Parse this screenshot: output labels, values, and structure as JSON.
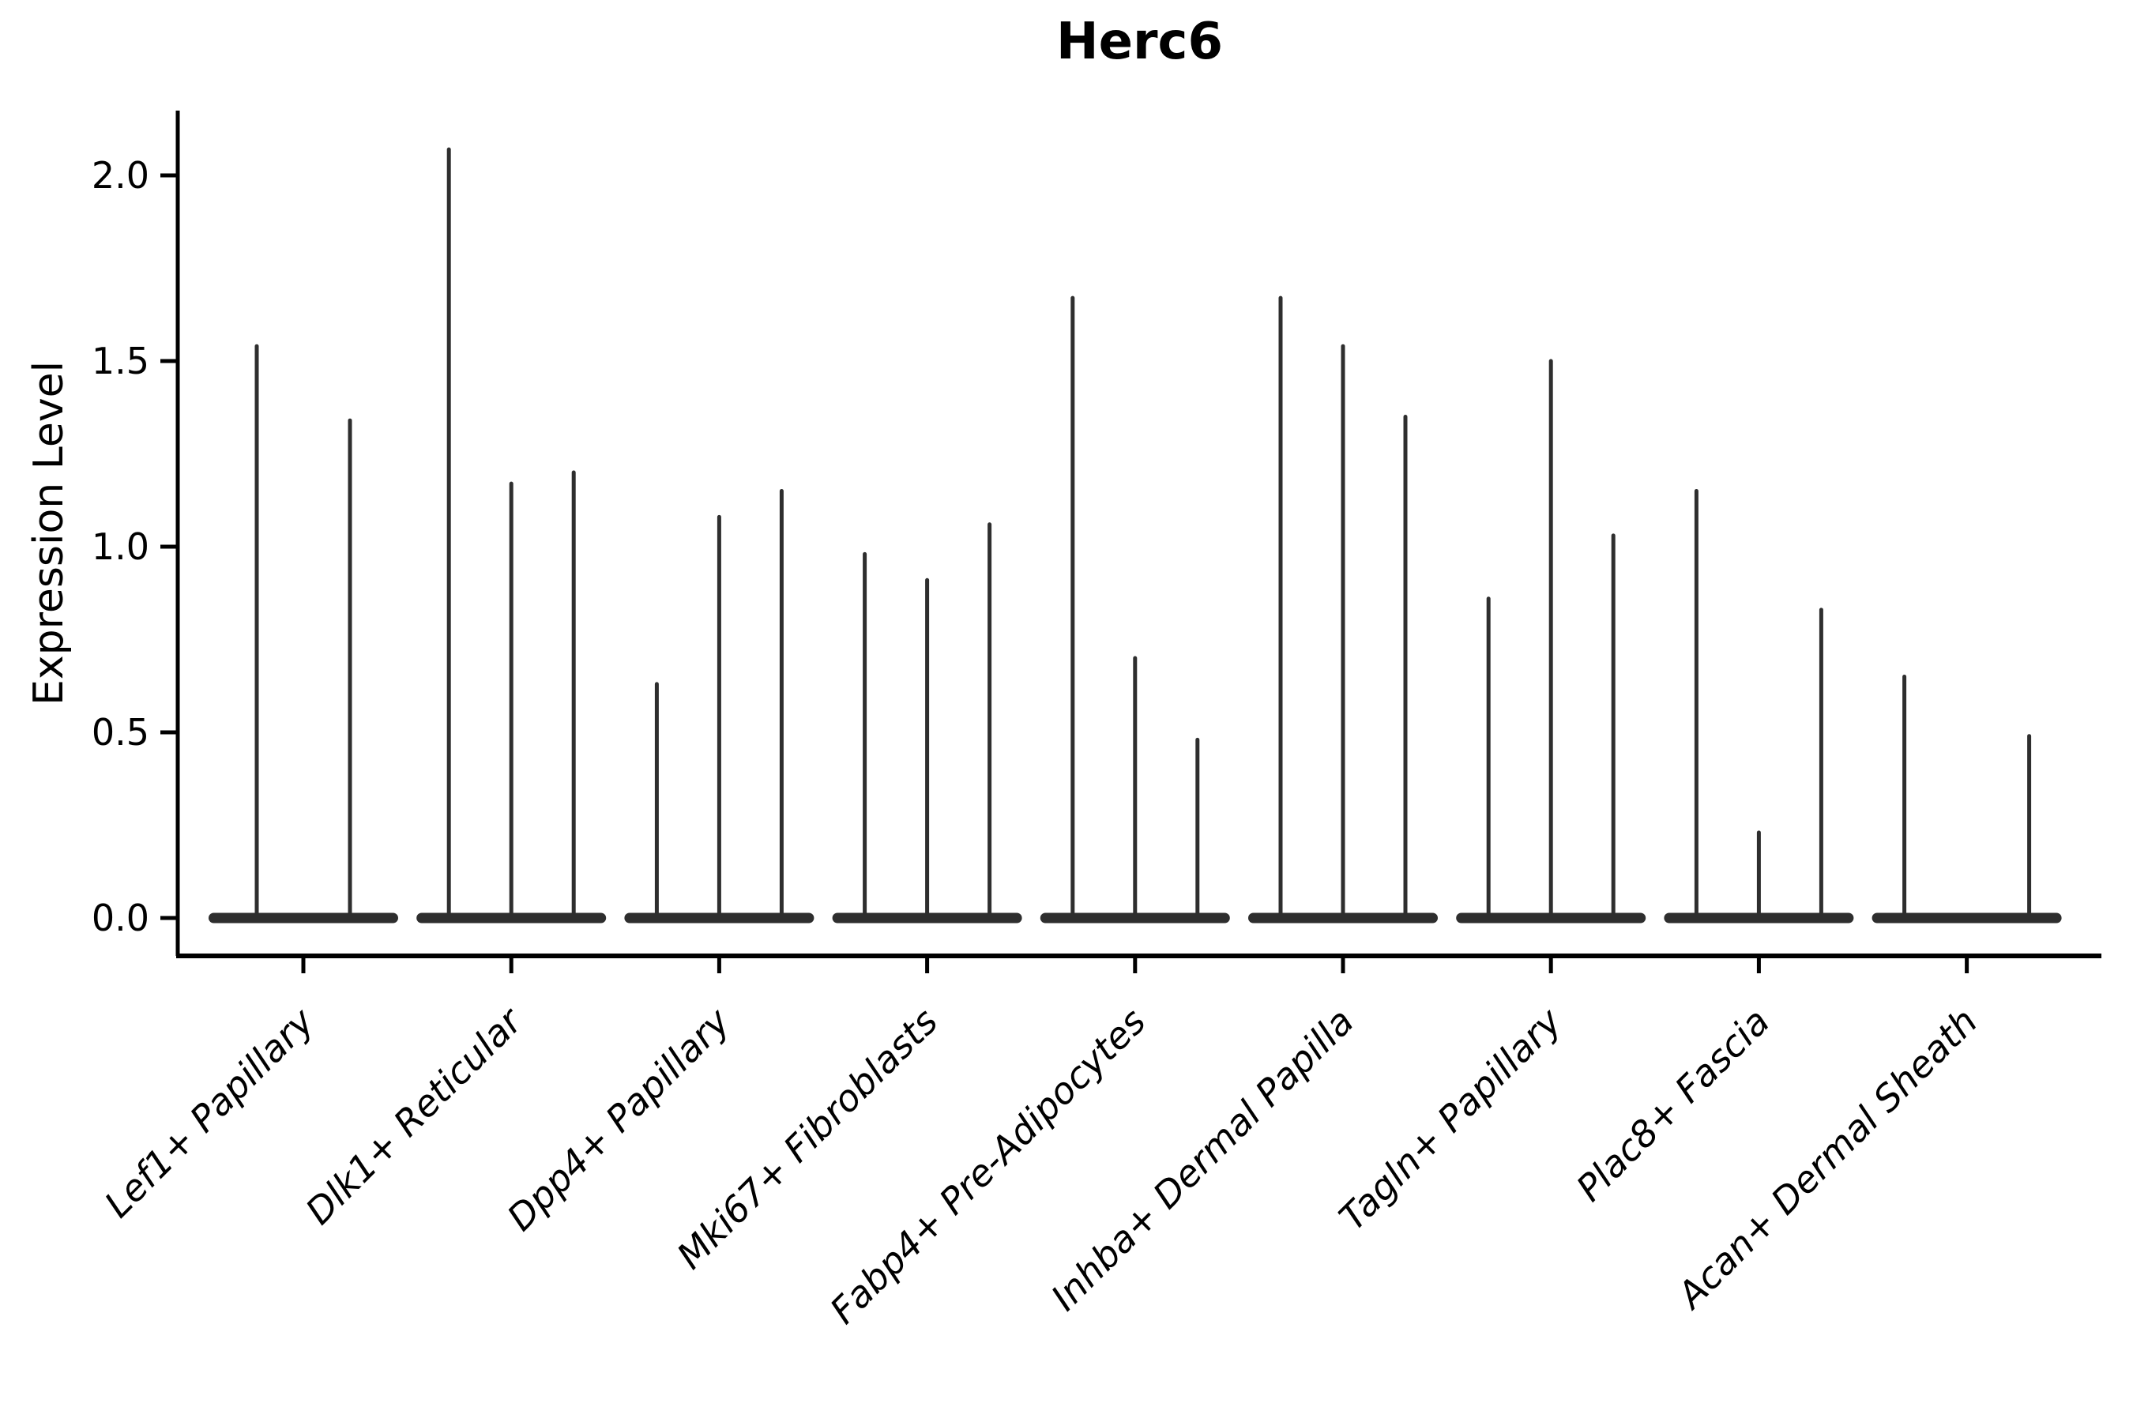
{
  "figure": {
    "title": "Herc6"
  },
  "chart_data": {
    "type": "violin",
    "title": "Herc6",
    "xlabel": "",
    "ylabel": "Expression Level",
    "yticks": [
      0.0,
      0.5,
      1.0,
      1.5,
      2.0
    ],
    "ytick_labels": [
      "0.0",
      "0.5",
      "1.0",
      "1.5",
      "2.0"
    ],
    "ylim": [
      -0.1,
      2.17
    ],
    "grid": false,
    "legend_position": "none",
    "note": "Collapsed violins: nearly all density lies at 0 (flat disc at baseline); each thin vertical line is a violin tail reaching the maximum expression value.",
    "categories": [
      {
        "label": "Lef1+ Papillary",
        "violins": [
          {
            "offset": -59,
            "max": 1.54
          },
          {
            "offset": 59,
            "max": 1.34
          }
        ]
      },
      {
        "label": "Dlk1+ Reticular",
        "violins": [
          {
            "offset": -79,
            "max": 2.07
          },
          {
            "offset": 0,
            "max": 1.17
          },
          {
            "offset": 79,
            "max": 1.2
          }
        ]
      },
      {
        "label": "Dpp4+ Papillary",
        "violins": [
          {
            "offset": -79,
            "max": 0.63
          },
          {
            "offset": 0,
            "max": 1.08
          },
          {
            "offset": 79,
            "max": 1.15
          }
        ]
      },
      {
        "label": "Mki67+ Fibroblasts",
        "violins": [
          {
            "offset": -79,
            "max": 0.98
          },
          {
            "offset": 0,
            "max": 0.91
          },
          {
            "offset": 79,
            "max": 1.06
          }
        ]
      },
      {
        "label": "Fabp4+ Pre-Adipocytes",
        "violins": [
          {
            "offset": -79,
            "max": 1.67
          },
          {
            "offset": 0,
            "max": 0.7
          },
          {
            "offset": 79,
            "max": 0.48
          }
        ]
      },
      {
        "label": "Inhba+ Dermal Papilla",
        "violins": [
          {
            "offset": -79,
            "max": 1.67
          },
          {
            "offset": 0,
            "max": 1.54
          },
          {
            "offset": 79,
            "max": 1.35
          }
        ]
      },
      {
        "label": "Tagln+ Papillary",
        "violins": [
          {
            "offset": -79,
            "max": 0.86
          },
          {
            "offset": 0,
            "max": 1.5
          },
          {
            "offset": 79,
            "max": 1.03
          }
        ]
      },
      {
        "label": "Plac8+ Fascia",
        "violins": [
          {
            "offset": -79,
            "max": 1.15
          },
          {
            "offset": 0,
            "max": 0.23
          },
          {
            "offset": 79,
            "max": 0.83
          }
        ]
      },
      {
        "label": "Acan+ Dermal Sheath",
        "violins": [
          {
            "offset": -79,
            "max": 0.65
          },
          {
            "offset": 79,
            "max": 0.49
          }
        ]
      }
    ],
    "colors": {
      "violin": "#2e2e2e",
      "axis": "#000000",
      "text": "#000000",
      "background": "#ffffff"
    }
  }
}
